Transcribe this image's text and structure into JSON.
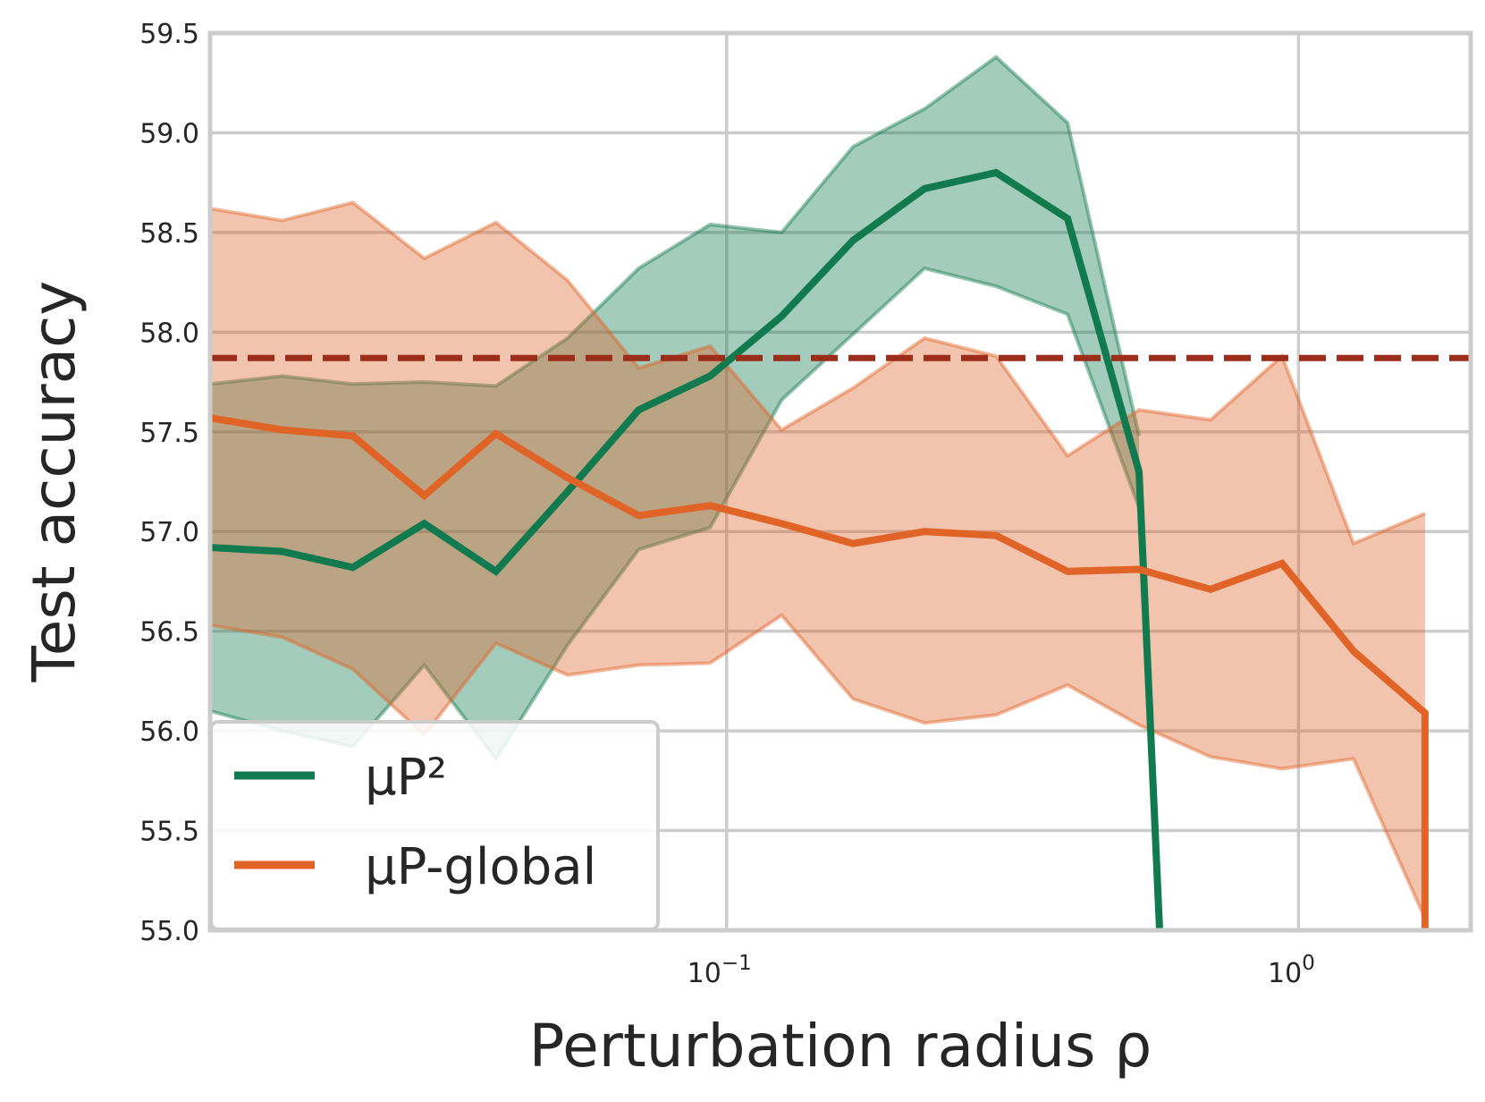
{
  "chart_data": {
    "type": "line",
    "xlabel": "Perturbation radius ρ",
    "ylabel": "Test accuracy",
    "xscale": "log",
    "xlim": [
      0.0125,
      2.0
    ],
    "ylim": [
      55.0,
      59.5
    ],
    "yticks": [
      "55.0",
      "55.5",
      "56.0",
      "56.5",
      "57.0",
      "57.5",
      "58.0",
      "58.5",
      "59.0",
      "59.5"
    ],
    "xticks": [
      {
        "value": 0.1,
        "base": "10",
        "exp": "−1"
      },
      {
        "value": 1.0,
        "base": "10",
        "exp": "0"
      }
    ],
    "grid": true,
    "legend_position": "lower-left",
    "baseline": {
      "value": 57.87,
      "color": "#9b2d1a"
    },
    "x": [
      0.0125,
      0.0167,
      0.0222,
      0.0296,
      0.0395,
      0.0527,
      0.0702,
      0.0936,
      0.1248,
      0.1664,
      0.2219,
      0.2959,
      0.3946,
      0.5262,
      0.7017,
      0.9357,
      1.2477,
      1.6639
    ],
    "series": [
      {
        "name": "μP²",
        "color": "#117a4e",
        "mean": [
          56.92,
          56.9,
          56.82,
          57.04,
          56.8,
          57.2,
          57.61,
          57.78,
          58.08,
          58.46,
          58.72,
          58.8,
          58.57,
          57.3,
          null,
          null,
          null,
          null
        ],
        "upper": [
          57.74,
          57.78,
          57.74,
          57.75,
          57.73,
          57.97,
          58.32,
          58.54,
          58.5,
          58.93,
          59.12,
          59.38,
          59.05,
          57.48,
          null,
          null,
          null,
          null
        ],
        "lower": [
          56.1,
          56.0,
          55.92,
          56.33,
          55.86,
          56.43,
          56.91,
          57.02,
          57.66,
          57.99,
          58.32,
          58.23,
          58.09,
          57.12,
          null,
          null,
          null,
          null
        ],
        "tail_x": [
          0.5262,
          0.5716
        ],
        "tail_mean": [
          57.3,
          55.0
        ]
      },
      {
        "name": "μP-global",
        "color": "#e06427",
        "mean": [
          57.57,
          57.51,
          57.48,
          57.18,
          57.49,
          57.27,
          57.08,
          57.13,
          57.04,
          56.94,
          57.0,
          56.98,
          56.8,
          56.81,
          56.71,
          56.84,
          56.4,
          56.09
        ],
        "upper": [
          58.62,
          58.56,
          58.65,
          58.37,
          58.55,
          58.26,
          57.82,
          57.93,
          57.51,
          57.72,
          57.97,
          57.88,
          57.38,
          57.61,
          57.56,
          57.88,
          56.94,
          57.09
        ],
        "lower": [
          56.53,
          56.47,
          56.31,
          55.98,
          56.44,
          56.28,
          56.33,
          56.34,
          56.58,
          56.16,
          56.04,
          56.08,
          56.23,
          56.03,
          55.87,
          55.81,
          55.86,
          55.06
        ],
        "tail_x": [
          1.6639,
          1.6639
        ],
        "tail_mean": [
          56.09,
          55.0
        ]
      }
    ]
  }
}
